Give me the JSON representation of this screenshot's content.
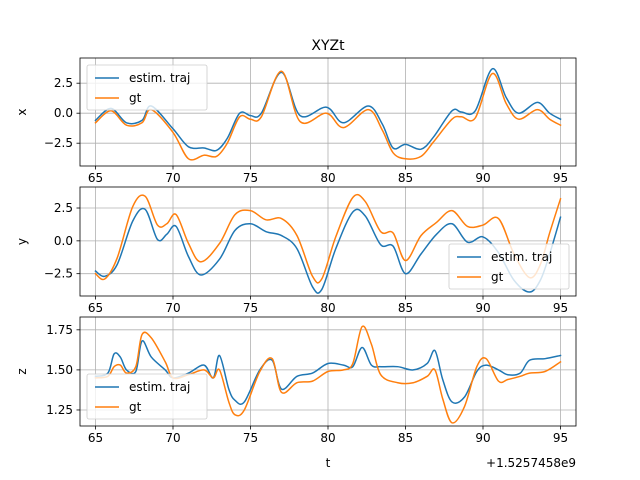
{
  "figure": {
    "title": "XYZt",
    "xlabel": "t",
    "x_offset_text": "+1.5257458e9"
  },
  "colors": {
    "estimate": "#1f77b4",
    "ground_truth": "#ff7f0e",
    "grid": "#b0b0b0"
  },
  "chart_data": [
    {
      "type": "line",
      "title": "XYZt",
      "xlabel": "",
      "ylabel": "x",
      "xlim": [
        64,
        96
      ],
      "ylim": [
        -4.4,
        4.6
      ],
      "xticks": [
        65,
        70,
        75,
        80,
        85,
        90,
        95
      ],
      "yticks": [
        -2.5,
        0.0,
        2.5
      ],
      "ytick_labels": [
        "−2.5",
        "0.0",
        "2.5"
      ],
      "grid": true,
      "legend": "upper left",
      "series": [
        {
          "name": "estim. traj",
          "x": [
            65.0,
            66.0,
            67.0,
            68.0,
            68.6,
            70.0,
            71.0,
            72.0,
            72.8,
            73.5,
            74.3,
            75.0,
            75.7,
            77.0,
            78.2,
            79.9,
            81.0,
            82.6,
            83.5,
            84.2,
            85.0,
            86.0,
            86.8,
            88.0,
            88.6,
            89.5,
            90.6,
            91.5,
            92.3,
            93.5,
            94.3,
            95.0
          ],
          "values": [
            -0.6,
            0.4,
            -0.8,
            -0.6,
            0.6,
            -1.3,
            -2.8,
            -2.9,
            -3.1,
            -2.1,
            0.0,
            -0.2,
            0.0,
            3.4,
            -0.2,
            0.5,
            -0.8,
            0.6,
            -0.9,
            -2.9,
            -2.6,
            -3.0,
            -2.0,
            0.2,
            0.1,
            0.2,
            3.7,
            1.3,
            0.0,
            0.9,
            0.0,
            -0.5
          ]
        },
        {
          "name": "gt",
          "x": [
            65.0,
            66.0,
            67.0,
            68.0,
            68.6,
            70.0,
            71.0,
            72.0,
            72.8,
            73.5,
            74.3,
            75.0,
            75.7,
            77.0,
            78.2,
            79.9,
            81.0,
            82.6,
            83.5,
            84.2,
            85.0,
            86.0,
            86.8,
            88.0,
            88.6,
            89.5,
            90.6,
            91.5,
            92.3,
            93.5,
            94.3,
            95.0
          ],
          "values": [
            -0.8,
            0.2,
            -1.0,
            -0.8,
            0.3,
            -1.6,
            -3.8,
            -3.5,
            -3.6,
            -2.5,
            -0.3,
            -0.5,
            -0.3,
            3.5,
            -0.7,
            0.0,
            -1.2,
            0.3,
            -1.4,
            -3.3,
            -3.8,
            -3.6,
            -2.4,
            -0.5,
            -0.3,
            -0.4,
            3.3,
            0.8,
            -0.5,
            0.3,
            -0.5,
            -1.0
          ]
        }
      ]
    },
    {
      "type": "line",
      "title": "",
      "xlabel": "",
      "ylabel": "y",
      "xlim": [
        64,
        96
      ],
      "ylim": [
        -4.2,
        4.1
      ],
      "xticks": [
        65,
        70,
        75,
        80,
        85,
        90,
        95
      ],
      "yticks": [
        -2.5,
        0.0,
        2.5
      ],
      "ytick_labels": [
        "−2.5",
        "0.0",
        "2.5"
      ],
      "grid": true,
      "legend": "lower right",
      "series": [
        {
          "name": "estim. traj",
          "x": [
            65.0,
            65.6,
            66.4,
            67.4,
            68.2,
            69.0,
            69.6,
            70.2,
            71.0,
            71.8,
            73.0,
            74.0,
            75.0,
            76.0,
            77.0,
            78.0,
            79.0,
            79.6,
            80.5,
            81.6,
            82.4,
            83.4,
            84.2,
            85.0,
            86.0,
            87.0,
            88.0,
            89.0,
            90.0,
            91.0,
            92.0,
            93.0,
            93.7,
            94.3,
            95.0
          ],
          "values": [
            -2.3,
            -2.7,
            -1.8,
            1.5,
            2.4,
            0.1,
            0.5,
            1.1,
            -1.2,
            -2.6,
            -1.4,
            0.8,
            1.3,
            0.7,
            0.4,
            -0.6,
            -3.5,
            -3.7,
            -0.6,
            2.2,
            1.9,
            -0.3,
            -0.4,
            -2.5,
            -1.0,
            0.5,
            1.3,
            -0.1,
            0.3,
            -0.9,
            -3.0,
            -3.9,
            -3.0,
            -1.0,
            1.8
          ]
        },
        {
          "name": "gt",
          "x": [
            65.0,
            65.6,
            66.4,
            67.4,
            68.2,
            69.0,
            69.6,
            70.2,
            71.0,
            71.8,
            73.0,
            74.0,
            75.0,
            76.0,
            77.0,
            78.0,
            79.0,
            79.6,
            80.5,
            81.6,
            82.4,
            83.4,
            84.2,
            85.0,
            86.0,
            87.0,
            88.0,
            89.0,
            90.0,
            91.0,
            92.0,
            93.0,
            93.7,
            94.3,
            95.0
          ],
          "values": [
            -2.5,
            -2.9,
            -1.3,
            2.6,
            3.4,
            1.2,
            1.3,
            2.0,
            -0.2,
            -1.6,
            -0.2,
            2.0,
            2.3,
            1.6,
            1.7,
            0.4,
            -2.7,
            -2.9,
            0.3,
            3.3,
            3.0,
            0.7,
            0.6,
            -1.5,
            0.4,
            1.4,
            2.3,
            1.1,
            1.2,
            1.7,
            -1.0,
            -2.8,
            -1.8,
            0.6,
            3.2
          ]
        }
      ]
    },
    {
      "type": "line",
      "title": "",
      "xlabel": "t",
      "ylabel": "z",
      "xlim": [
        64,
        96
      ],
      "ylim": [
        1.15,
        1.83
      ],
      "xticks": [
        65,
        70,
        75,
        80,
        85,
        90,
        95
      ],
      "yticks": [
        1.25,
        1.5,
        1.75
      ],
      "ytick_labels": [
        "1.25",
        "1.50",
        "1.75"
      ],
      "grid": true,
      "legend": "lower left",
      "series": [
        {
          "name": "estim. traj",
          "x": [
            65.0,
            65.8,
            66.2,
            66.6,
            67.0,
            67.6,
            68.0,
            68.6,
            69.5,
            70.0,
            71.0,
            72.0,
            72.6,
            73.0,
            73.6,
            74.0,
            74.6,
            75.6,
            76.4,
            77.0,
            78.0,
            79.0,
            80.0,
            81.0,
            81.6,
            82.2,
            82.8,
            83.4,
            84.5,
            85.5,
            86.4,
            86.9,
            87.4,
            88.0,
            88.8,
            89.6,
            90.2,
            91.0,
            91.6,
            92.4,
            93.0,
            94.0,
            95.0
          ],
          "values": [
            1.46,
            1.48,
            1.6,
            1.58,
            1.5,
            1.49,
            1.68,
            1.58,
            1.5,
            1.45,
            1.48,
            1.53,
            1.45,
            1.59,
            1.38,
            1.31,
            1.3,
            1.5,
            1.56,
            1.38,
            1.46,
            1.48,
            1.54,
            1.53,
            1.52,
            1.64,
            1.53,
            1.52,
            1.52,
            1.5,
            1.54,
            1.62,
            1.44,
            1.3,
            1.33,
            1.49,
            1.53,
            1.5,
            1.47,
            1.48,
            1.56,
            1.57,
            1.59
          ]
        },
        {
          "name": "gt",
          "x": [
            65.0,
            65.8,
            66.2,
            66.6,
            67.0,
            67.6,
            68.0,
            68.6,
            69.5,
            70.0,
            71.0,
            72.0,
            72.6,
            73.0,
            73.6,
            74.0,
            74.6,
            75.6,
            76.4,
            77.0,
            78.0,
            79.0,
            80.0,
            81.0,
            81.6,
            82.2,
            82.8,
            83.4,
            84.5,
            85.5,
            86.4,
            86.9,
            87.4,
            88.0,
            88.8,
            89.6,
            90.2,
            91.0,
            91.6,
            92.4,
            93.0,
            94.0,
            95.0
          ],
          "values": [
            1.45,
            1.46,
            1.52,
            1.53,
            1.48,
            1.52,
            1.72,
            1.7,
            1.55,
            1.45,
            1.47,
            1.5,
            1.45,
            1.5,
            1.3,
            1.22,
            1.25,
            1.49,
            1.57,
            1.36,
            1.42,
            1.43,
            1.49,
            1.5,
            1.54,
            1.77,
            1.66,
            1.47,
            1.42,
            1.42,
            1.46,
            1.5,
            1.32,
            1.17,
            1.27,
            1.52,
            1.57,
            1.43,
            1.44,
            1.46,
            1.48,
            1.49,
            1.55
          ]
        }
      ]
    }
  ]
}
